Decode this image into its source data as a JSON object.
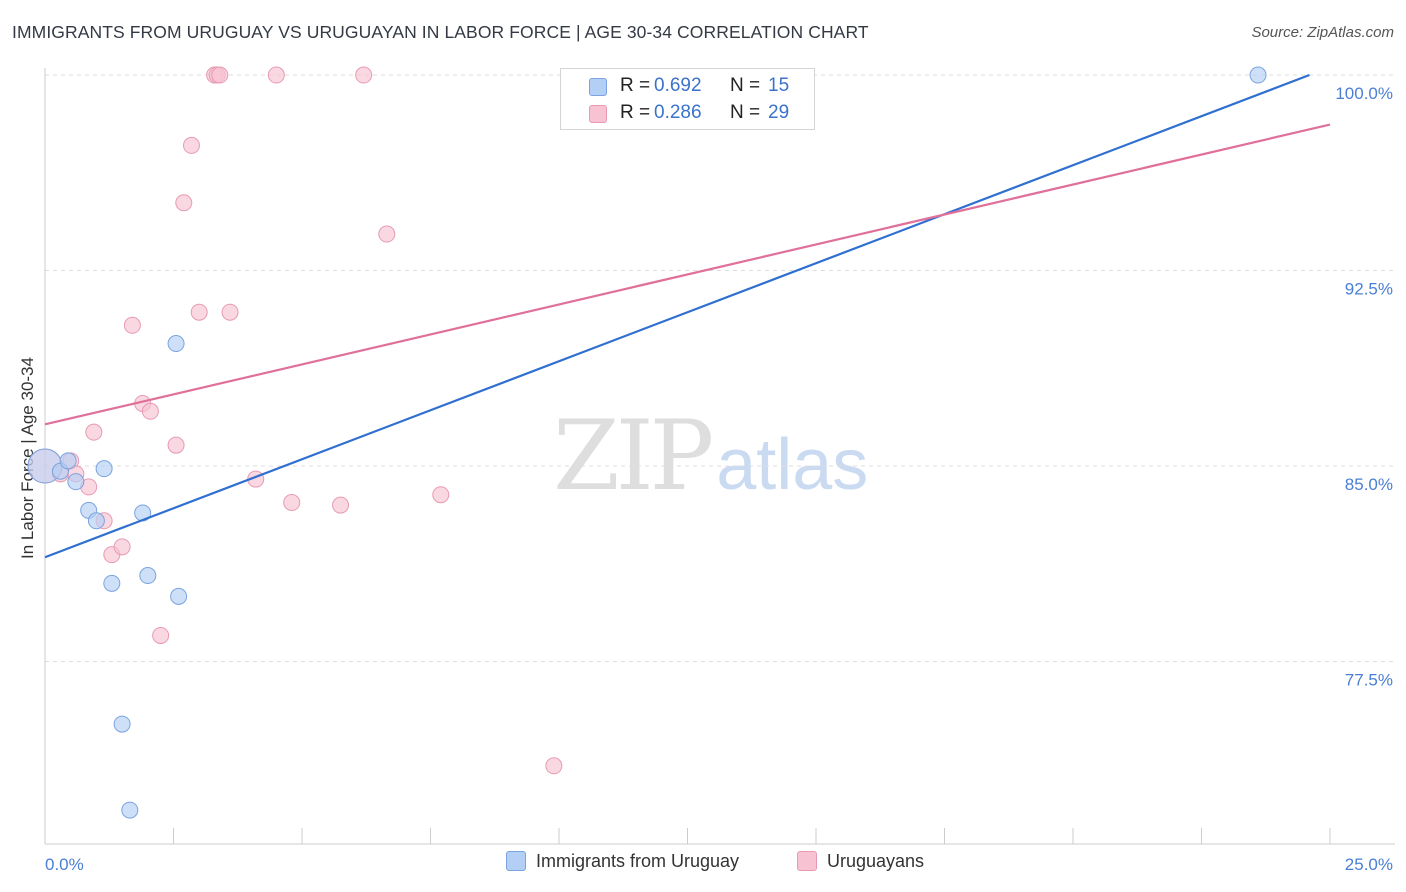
{
  "header": {
    "title": "IMMIGRANTS FROM URUGUAY VS URUGUAYAN IN LABOR FORCE | AGE 30-34 CORRELATION CHART",
    "source": "Source: ZipAtlas.com"
  },
  "watermark": {
    "zip": "ZIP",
    "atlas": "atlas"
  },
  "legend": {
    "rows": [
      {
        "r_label": "R = ",
        "r_value": "0.692",
        "n_label": "N = ",
        "n_value": "15"
      },
      {
        "r_label": "R = ",
        "r_value": "0.286",
        "n_label": "N = ",
        "n_value": "29"
      }
    ]
  },
  "bottom_legend": {
    "series1": "Immigrants from Uruguay",
    "series2": "Uruguayans"
  },
  "colors": {
    "blue_fill": "#b3cff5",
    "blue_stroke": "#7aa3e0",
    "blue_line": "#2f6fd0",
    "pink_fill": "#f7c3d2",
    "pink_stroke": "#e89ab3",
    "pink_line": "#e0709a",
    "tick_text": "#4a7fd4"
  },
  "chart_data": {
    "type": "scatter",
    "title": "IMMIGRANTS FROM URUGUAY VS URUGUAYAN IN LABOR FORCE | AGE 30-34 CORRELATION CHART",
    "xlabel": "",
    "ylabel": "In Labor Force | Age 30-34",
    "xlim": [
      0,
      25
    ],
    "ylim": [
      70.5,
      100.5
    ],
    "x_tick_labels": [
      "0.0%",
      "25.0%"
    ],
    "y_ticks": [
      77.5,
      85.0,
      92.5,
      100.0
    ],
    "y_tick_labels": [
      "77.5%",
      "85.0%",
      "92.5%",
      "100.0%"
    ],
    "grid": true,
    "series": [
      {
        "name": "Immigrants from Uruguay",
        "R": 0.692,
        "N": 15,
        "points": [
          {
            "x": 0.0,
            "y": 85.0,
            "big": true
          },
          {
            "x": 0.3,
            "y": 84.8
          },
          {
            "x": 0.45,
            "y": 85.2
          },
          {
            "x": 0.6,
            "y": 84.4
          },
          {
            "x": 0.85,
            "y": 83.3
          },
          {
            "x": 1.0,
            "y": 82.9
          },
          {
            "x": 1.15,
            "y": 84.9
          },
          {
            "x": 1.3,
            "y": 80.5
          },
          {
            "x": 1.5,
            "y": 75.1
          },
          {
            "x": 1.65,
            "y": 71.8
          },
          {
            "x": 1.9,
            "y": 83.2
          },
          {
            "x": 2.0,
            "y": 80.8
          },
          {
            "x": 2.6,
            "y": 80.0
          },
          {
            "x": 2.55,
            "y": 89.7
          },
          {
            "x": 23.6,
            "y": 100.0
          }
        ],
        "trend": {
          "x1": 0,
          "y1": 81.5,
          "x2": 24.6,
          "y2": 100.0
        }
      },
      {
        "name": "Uruguayans",
        "R": 0.286,
        "N": 29,
        "points": [
          {
            "x": 0.0,
            "y": 85.0,
            "big": true
          },
          {
            "x": 0.3,
            "y": 84.7
          },
          {
            "x": 0.5,
            "y": 85.2
          },
          {
            "x": 0.6,
            "y": 84.7
          },
          {
            "x": 0.85,
            "y": 84.2
          },
          {
            "x": 0.95,
            "y": 86.3
          },
          {
            "x": 1.15,
            "y": 82.9
          },
          {
            "x": 1.3,
            "y": 81.6
          },
          {
            "x": 1.5,
            "y": 81.9
          },
          {
            "x": 1.7,
            "y": 90.4
          },
          {
            "x": 1.9,
            "y": 87.4
          },
          {
            "x": 2.05,
            "y": 87.1
          },
          {
            "x": 2.25,
            "y": 78.5
          },
          {
            "x": 2.55,
            "y": 85.8
          },
          {
            "x": 2.7,
            "y": 95.1
          },
          {
            "x": 2.85,
            "y": 97.3
          },
          {
            "x": 3.0,
            "y": 90.9
          },
          {
            "x": 3.3,
            "y": 100.0
          },
          {
            "x": 3.35,
            "y": 100.0
          },
          {
            "x": 3.4,
            "y": 100.0
          },
          {
            "x": 3.6,
            "y": 90.9
          },
          {
            "x": 4.1,
            "y": 84.5
          },
          {
            "x": 4.5,
            "y": 100.0
          },
          {
            "x": 4.8,
            "y": 83.6
          },
          {
            "x": 5.75,
            "y": 83.5
          },
          {
            "x": 6.2,
            "y": 100.0
          },
          {
            "x": 6.65,
            "y": 93.9
          },
          {
            "x": 7.7,
            "y": 83.9
          },
          {
            "x": 9.9,
            "y": 73.5
          }
        ],
        "trend": {
          "x1": 0,
          "y1": 86.6,
          "x2": 25,
          "y2": 98.1
        }
      }
    ]
  }
}
